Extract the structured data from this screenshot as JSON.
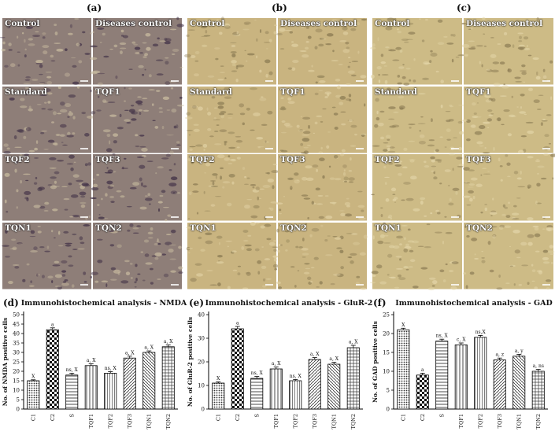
{
  "panel_labels": [
    "(a)",
    "(b)",
    "(c)",
    "(d)",
    "(e)",
    "(f)"
  ],
  "tile_labels": [
    "Control",
    "Diseases control",
    "Standard",
    "TQF1",
    "TQF2",
    "TQF3",
    "TQN1",
    "TQN2"
  ],
  "panels": [
    {
      "tone": "#8e7e78",
      "dark": "#3f2f45",
      "light": "#c9bca0"
    },
    {
      "tone": "#c9b480",
      "dark": "#8a7a52",
      "light": "#e0d0a2"
    },
    {
      "tone": "#cdbb86",
      "dark": "#8d7d55",
      "light": "#e3d5a8"
    }
  ],
  "chart_data": [
    {
      "type": "bar",
      "title": "Immunohistochemical analysis - NMDA",
      "ylabel": "No. of NMDA positive cells",
      "ylim": [
        0,
        50
      ],
      "yticks": [
        0,
        5,
        10,
        15,
        20,
        25,
        30,
        35,
        40,
        45,
        50
      ],
      "categories": [
        "C1",
        "C2",
        "S",
        "TQF1",
        "TQF2",
        "TQF3",
        "TQN1",
        "TQN2"
      ],
      "values": [
        15,
        42,
        18,
        23,
        19,
        27,
        30,
        33
      ],
      "errors": [
        0.5,
        1,
        1,
        1,
        0.8,
        1,
        0.8,
        1
      ],
      "annotations": [
        "X",
        "a",
        "ns, X",
        "a, X",
        "ns, X",
        "a, X",
        "a, X",
        "a, X"
      ]
    },
    {
      "type": "bar",
      "title": "Immunohistochemical analysis - GluR-2",
      "ylabel": "No. of GluR-2 positive cells",
      "ylim": [
        0,
        40
      ],
      "yticks": [
        0,
        10,
        20,
        30,
        40
      ],
      "categories": [
        "C1",
        "C2",
        "S",
        "TQF1",
        "TQF2",
        "TQF3",
        "TQN1",
        "TQN2"
      ],
      "values": [
        11,
        34,
        13,
        17,
        12,
        21,
        19,
        26
      ],
      "errors": [
        0.5,
        1,
        0.8,
        0.8,
        0.5,
        0.8,
        0.8,
        1
      ],
      "annotations": [
        "X",
        "a",
        "ns, X",
        "a, X",
        "ns, X",
        "a, X",
        "a, X",
        "a, X"
      ]
    },
    {
      "type": "bar",
      "title": "Immunohistochemical analysis - GAD",
      "ylabel": "No. of GAD positive cells",
      "ylim": [
        0,
        25
      ],
      "yticks": [
        0,
        5,
        10,
        15,
        20,
        25
      ],
      "categories": [
        "C1",
        "C2",
        "S",
        "TQF1",
        "TQF2",
        "TQF3",
        "TQN1",
        "TQN2"
      ],
      "values": [
        21,
        9,
        18,
        17,
        19,
        13,
        14,
        10
      ],
      "errors": [
        0.4,
        0.5,
        0.5,
        0.5,
        0.5,
        0.5,
        0.5,
        0.5
      ],
      "annotations": [
        "X",
        "a",
        "ns, X",
        "c, X",
        "ns,X",
        "a, z",
        "a, y",
        "a, ns"
      ]
    }
  ]
}
